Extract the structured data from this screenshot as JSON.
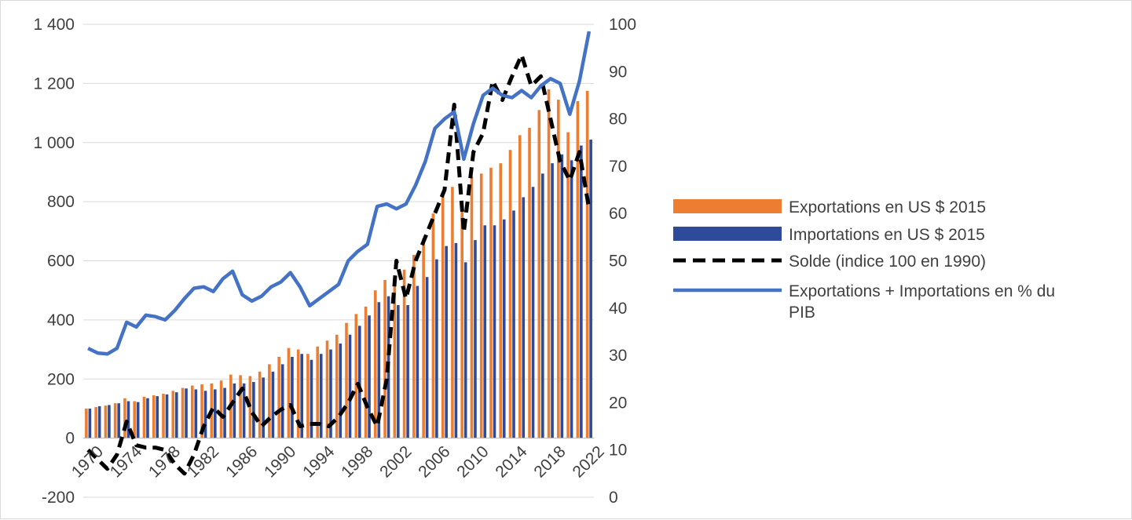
{
  "chart_data": {
    "type": "bar",
    "title": "",
    "xlabel": "",
    "ylabel": "",
    "ylim_left": [
      -200,
      1400
    ],
    "ylim_right": [
      0,
      100
    ],
    "left_ticks": [
      "-200",
      "0",
      "200",
      "400",
      "600",
      "800",
      "1 000",
      "1 200",
      "1 400"
    ],
    "right_ticks": [
      "0",
      "10",
      "20",
      "30",
      "40",
      "50",
      "60",
      "70",
      "80",
      "90",
      "100"
    ],
    "x_tick_labels": [
      "1970",
      "1974",
      "1978",
      "1982",
      "1986",
      "1990",
      "1994",
      "1998",
      "2002",
      "2006",
      "2010",
      "2014",
      "2018",
      "2022"
    ],
    "years": [
      1970,
      1971,
      1972,
      1973,
      1974,
      1975,
      1976,
      1977,
      1978,
      1979,
      1980,
      1981,
      1982,
      1983,
      1984,
      1985,
      1986,
      1987,
      1988,
      1989,
      1990,
      1991,
      1992,
      1993,
      1994,
      1995,
      1996,
      1997,
      1998,
      1999,
      2000,
      2001,
      2002,
      2003,
      2004,
      2005,
      2006,
      2007,
      2008,
      2009,
      2010,
      2011,
      2012,
      2013,
      2014,
      2015,
      2016,
      2017,
      2018,
      2019,
      2020,
      2021,
      2022
    ],
    "gridlines": true,
    "legend_position": "right",
    "series": [
      {
        "name": "Exportations en US $ 2015",
        "kind": "bar",
        "axis": "left",
        "color": "#ed7d31",
        "values": [
          100,
          105,
          110,
          118,
          135,
          125,
          140,
          145,
          150,
          160,
          170,
          178,
          182,
          185,
          195,
          215,
          213,
          210,
          225,
          250,
          275,
          305,
          300,
          285,
          310,
          330,
          350,
          390,
          420,
          445,
          500,
          535,
          550,
          570,
          620,
          675,
          760,
          830,
          850,
          800,
          885,
          895,
          915,
          930,
          975,
          1025,
          1050,
          1110,
          1180,
          1145,
          1035,
          1140,
          1175
        ]
      },
      {
        "name": "Importations en US $ 2015",
        "kind": "bar",
        "axis": "left",
        "color": "#2e4a9a",
        "values": [
          100,
          108,
          112,
          118,
          125,
          122,
          135,
          142,
          148,
          155,
          168,
          165,
          160,
          165,
          170,
          185,
          185,
          190,
          205,
          225,
          250,
          275,
          285,
          265,
          285,
          300,
          320,
          350,
          380,
          415,
          460,
          480,
          450,
          450,
          515,
          545,
          605,
          650,
          660,
          595,
          670,
          720,
          720,
          740,
          770,
          815,
          850,
          895,
          930,
          960,
          940,
          990,
          1010
        ]
      },
      {
        "name": "Solde (indice 100 en 1990)",
        "kind": "line",
        "axis": "right",
        "color": "#000000",
        "dashed": true,
        "values": [
          10,
          8,
          6,
          9,
          16,
          11,
          10.5,
          10.5,
          10,
          7,
          5,
          9,
          15,
          19,
          17,
          20,
          23,
          18,
          15,
          17,
          18.5,
          19.5,
          15,
          15.5,
          15.5,
          15,
          17,
          20,
          24,
          19,
          15,
          25,
          50,
          42,
          50,
          55,
          60,
          65,
          83,
          56,
          73,
          77,
          88,
          84,
          89,
          93.5,
          87,
          89,
          80,
          71,
          67,
          73,
          61
        ]
      },
      {
        "name": "Exportations + Importations en % du PIB",
        "kind": "line",
        "axis": "right",
        "color": "#4472c4",
        "dashed": false,
        "values": [
          31.5,
          30.5,
          30.3,
          31.5,
          37,
          36,
          38.5,
          38.2,
          37.5,
          39.5,
          42,
          44.2,
          44.5,
          43.5,
          46.2,
          47.8,
          42.8,
          41.5,
          42.5,
          44.5,
          45.5,
          47.5,
          44.5,
          40.5,
          42,
          43.5,
          45,
          50,
          52,
          53.5,
          61.5,
          62,
          61,
          62,
          66,
          71,
          78,
          80,
          81.5,
          71.5,
          79,
          85,
          86.5,
          85,
          84.5,
          86,
          84.5,
          87,
          88.5,
          87.5,
          81,
          88,
          98.5
        ]
      }
    ]
  }
}
